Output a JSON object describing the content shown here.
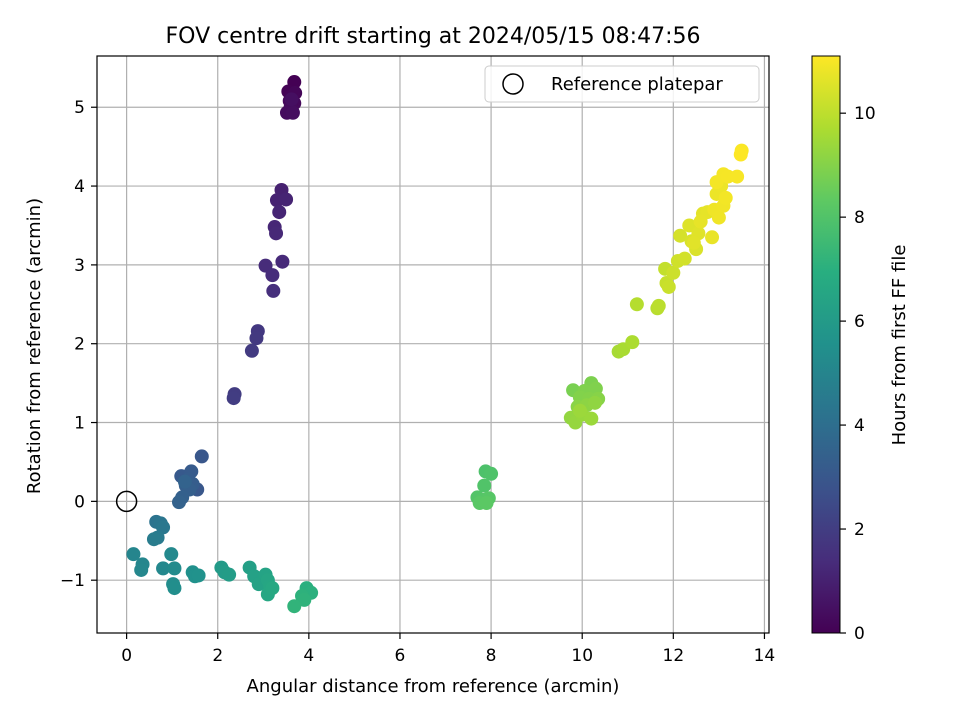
{
  "chart_data": {
    "type": "scatter",
    "title": "FOV centre drift starting at 2024/05/15 08:47:56",
    "xlabel": "Angular distance from reference (arcmin)",
    "ylabel": "Rotation from reference (arcmin)",
    "xlim": [
      -0.65,
      14.1
    ],
    "ylim": [
      -1.67,
      5.65
    ],
    "xticks": [
      0,
      2,
      4,
      6,
      8,
      10,
      12,
      14
    ],
    "yticks": [
      -1,
      0,
      1,
      2,
      3,
      4,
      5
    ],
    "ytick_labels": [
      "−1",
      "0",
      "1",
      "2",
      "3",
      "4",
      "5"
    ],
    "grid": true,
    "legend": {
      "placement": "top-right",
      "entries": [
        "Reference platepar"
      ]
    },
    "reference_point": {
      "x": 0,
      "y": 0,
      "label": "Reference platepar"
    },
    "colorbar": {
      "label": "Hours from first FF file",
      "colormap": "viridis",
      "range": [
        0,
        11.1
      ],
      "ticks": [
        0,
        2,
        4,
        6,
        8,
        10
      ]
    },
    "points": [
      {
        "x": 3.68,
        "y": 5.32,
        "h": 0.0
      },
      {
        "x": 3.55,
        "y": 5.2,
        "h": 0.05
      },
      {
        "x": 3.62,
        "y": 5.15,
        "h": 0.1
      },
      {
        "x": 3.7,
        "y": 5.18,
        "h": 0.15
      },
      {
        "x": 3.58,
        "y": 5.08,
        "h": 0.2
      },
      {
        "x": 3.68,
        "y": 5.05,
        "h": 0.25
      },
      {
        "x": 3.6,
        "y": 5.0,
        "h": 0.3
      },
      {
        "x": 3.52,
        "y": 4.93,
        "h": 0.35
      },
      {
        "x": 3.65,
        "y": 4.93,
        "h": 0.4
      },
      {
        "x": 3.62,
        "y": 5.1,
        "h": 0.45
      },
      {
        "x": 3.4,
        "y": 3.95,
        "h": 1.0
      },
      {
        "x": 3.3,
        "y": 3.82,
        "h": 1.05
      },
      {
        "x": 3.5,
        "y": 3.83,
        "h": 1.1
      },
      {
        "x": 3.35,
        "y": 3.67,
        "h": 1.15
      },
      {
        "x": 3.25,
        "y": 3.48,
        "h": 1.2
      },
      {
        "x": 3.28,
        "y": 3.4,
        "h": 1.25
      },
      {
        "x": 3.42,
        "y": 3.04,
        "h": 1.3
      },
      {
        "x": 3.05,
        "y": 2.99,
        "h": 1.35
      },
      {
        "x": 3.2,
        "y": 2.87,
        "h": 1.4
      },
      {
        "x": 3.22,
        "y": 2.67,
        "h": 1.45
      },
      {
        "x": 2.88,
        "y": 2.16,
        "h": 1.8
      },
      {
        "x": 2.85,
        "y": 2.07,
        "h": 1.85
      },
      {
        "x": 2.75,
        "y": 1.91,
        "h": 1.9
      },
      {
        "x": 2.37,
        "y": 1.36,
        "h": 1.95
      },
      {
        "x": 2.35,
        "y": 1.31,
        "h": 2.0
      },
      {
        "x": 1.65,
        "y": 0.57,
        "h": 3.0
      },
      {
        "x": 1.55,
        "y": 0.15,
        "h": 3.0
      },
      {
        "x": 1.2,
        "y": 0.32,
        "h": 3.1
      },
      {
        "x": 1.42,
        "y": 0.38,
        "h": 3.15
      },
      {
        "x": 1.35,
        "y": 0.28,
        "h": 3.2
      },
      {
        "x": 1.45,
        "y": 0.22,
        "h": 3.25
      },
      {
        "x": 1.3,
        "y": 0.2,
        "h": 3.3
      },
      {
        "x": 1.38,
        "y": 0.15,
        "h": 3.35
      },
      {
        "x": 1.22,
        "y": 0.05,
        "h": 3.4
      },
      {
        "x": 1.15,
        "y": -0.01,
        "h": 3.45
      },
      {
        "x": 1.28,
        "y": 0.25,
        "h": 3.5
      },
      {
        "x": 0.65,
        "y": -0.26,
        "h": 4.2
      },
      {
        "x": 0.75,
        "y": -0.28,
        "h": 4.3
      },
      {
        "x": 0.8,
        "y": -0.33,
        "h": 4.4
      },
      {
        "x": 0.68,
        "y": -0.46,
        "h": 4.5
      },
      {
        "x": 0.6,
        "y": -0.48,
        "h": 4.6
      },
      {
        "x": 0.15,
        "y": -0.67,
        "h": 5.0
      },
      {
        "x": 0.35,
        "y": -0.8,
        "h": 5.05
      },
      {
        "x": 0.32,
        "y": -0.87,
        "h": 5.1
      },
      {
        "x": 0.8,
        "y": -0.85,
        "h": 5.15
      },
      {
        "x": 0.98,
        "y": -0.67,
        "h": 5.2
      },
      {
        "x": 1.05,
        "y": -0.85,
        "h": 5.3
      },
      {
        "x": 1.02,
        "y": -1.05,
        "h": 5.35
      },
      {
        "x": 1.05,
        "y": -1.1,
        "h": 5.4
      },
      {
        "x": 1.45,
        "y": -0.9,
        "h": 5.5
      },
      {
        "x": 1.5,
        "y": -0.95,
        "h": 5.55
      },
      {
        "x": 1.58,
        "y": -0.94,
        "h": 5.6
      },
      {
        "x": 2.08,
        "y": -0.84,
        "h": 6.0
      },
      {
        "x": 2.15,
        "y": -0.9,
        "h": 6.05
      },
      {
        "x": 2.25,
        "y": -0.93,
        "h": 6.1
      },
      {
        "x": 2.7,
        "y": -0.84,
        "h": 6.2
      },
      {
        "x": 2.8,
        "y": -0.95,
        "h": 6.3
      },
      {
        "x": 2.9,
        "y": -1.05,
        "h": 6.35
      },
      {
        "x": 3.05,
        "y": -0.93,
        "h": 6.4
      },
      {
        "x": 3.1,
        "y": -1.0,
        "h": 6.5
      },
      {
        "x": 3.15,
        "y": -1.08,
        "h": 6.55
      },
      {
        "x": 3.1,
        "y": -1.18,
        "h": 6.6
      },
      {
        "x": 3.2,
        "y": -1.1,
        "h": 6.65
      },
      {
        "x": 3.95,
        "y": -1.1,
        "h": 7.0
      },
      {
        "x": 4.05,
        "y": -1.16,
        "h": 7.05
      },
      {
        "x": 3.85,
        "y": -1.2,
        "h": 7.1
      },
      {
        "x": 3.9,
        "y": -1.25,
        "h": 7.15
      },
      {
        "x": 3.68,
        "y": -1.33,
        "h": 7.2
      },
      {
        "x": 7.88,
        "y": 0.38,
        "h": 7.9
      },
      {
        "x": 8.0,
        "y": 0.35,
        "h": 7.95
      },
      {
        "x": 7.85,
        "y": 0.2,
        "h": 8.0
      },
      {
        "x": 7.7,
        "y": 0.05,
        "h": 8.05
      },
      {
        "x": 7.8,
        "y": 0.02,
        "h": 8.1
      },
      {
        "x": 7.95,
        "y": 0.04,
        "h": 8.15
      },
      {
        "x": 7.75,
        "y": -0.02,
        "h": 8.2
      },
      {
        "x": 7.9,
        "y": -0.02,
        "h": 8.25
      },
      {
        "x": 9.8,
        "y": 1.41,
        "h": 8.8
      },
      {
        "x": 10.2,
        "y": 1.5,
        "h": 8.85
      },
      {
        "x": 10.05,
        "y": 1.4,
        "h": 8.9
      },
      {
        "x": 10.3,
        "y": 1.43,
        "h": 8.92
      },
      {
        "x": 9.95,
        "y": 1.32,
        "h": 8.95
      },
      {
        "x": 10.15,
        "y": 1.3,
        "h": 9.0
      },
      {
        "x": 10.35,
        "y": 1.3,
        "h": 9.05
      },
      {
        "x": 9.9,
        "y": 1.2,
        "h": 9.1
      },
      {
        "x": 10.1,
        "y": 1.22,
        "h": 9.15
      },
      {
        "x": 10.28,
        "y": 1.25,
        "h": 9.2
      },
      {
        "x": 9.75,
        "y": 1.06,
        "h": 9.25
      },
      {
        "x": 9.85,
        "y": 1.0,
        "h": 9.3
      },
      {
        "x": 10.0,
        "y": 1.1,
        "h": 9.35
      },
      {
        "x": 10.2,
        "y": 1.05,
        "h": 9.4
      },
      {
        "x": 9.95,
        "y": 1.15,
        "h": 9.42
      },
      {
        "x": 10.8,
        "y": 1.9,
        "h": 9.6
      },
      {
        "x": 10.9,
        "y": 1.93,
        "h": 9.65
      },
      {
        "x": 11.1,
        "y": 2.02,
        "h": 9.7
      },
      {
        "x": 11.2,
        "y": 2.5,
        "h": 9.85
      },
      {
        "x": 11.65,
        "y": 2.45,
        "h": 9.9
      },
      {
        "x": 11.68,
        "y": 2.48,
        "h": 9.95
      },
      {
        "x": 11.82,
        "y": 2.95,
        "h": 10.1
      },
      {
        "x": 11.85,
        "y": 2.77,
        "h": 10.15
      },
      {
        "x": 11.9,
        "y": 2.72,
        "h": 10.2
      },
      {
        "x": 12.0,
        "y": 2.9,
        "h": 10.25
      },
      {
        "x": 12.1,
        "y": 3.05,
        "h": 10.3
      },
      {
        "x": 12.25,
        "y": 3.08,
        "h": 10.35
      },
      {
        "x": 12.15,
        "y": 3.37,
        "h": 10.4
      },
      {
        "x": 12.4,
        "y": 3.3,
        "h": 10.45
      },
      {
        "x": 12.5,
        "y": 3.2,
        "h": 10.5
      },
      {
        "x": 12.35,
        "y": 3.5,
        "h": 10.55
      },
      {
        "x": 12.55,
        "y": 3.4,
        "h": 10.6
      },
      {
        "x": 12.45,
        "y": 3.28,
        "h": 10.62
      },
      {
        "x": 12.65,
        "y": 3.65,
        "h": 10.65
      },
      {
        "x": 12.75,
        "y": 3.67,
        "h": 10.7
      },
      {
        "x": 12.6,
        "y": 3.55,
        "h": 10.72
      },
      {
        "x": 12.85,
        "y": 3.35,
        "h": 10.75
      },
      {
        "x": 12.95,
        "y": 3.9,
        "h": 10.8
      },
      {
        "x": 13.05,
        "y": 4.0,
        "h": 10.82
      },
      {
        "x": 12.9,
        "y": 3.7,
        "h": 10.85
      },
      {
        "x": 13.0,
        "y": 3.6,
        "h": 10.88
      },
      {
        "x": 13.1,
        "y": 3.75,
        "h": 10.9
      },
      {
        "x": 13.15,
        "y": 3.85,
        "h": 10.92
      },
      {
        "x": 12.95,
        "y": 4.05,
        "h": 10.94
      },
      {
        "x": 13.1,
        "y": 4.15,
        "h": 10.96
      },
      {
        "x": 13.2,
        "y": 4.12,
        "h": 10.98
      },
      {
        "x": 13.4,
        "y": 4.12,
        "h": 11.0
      },
      {
        "x": 13.5,
        "y": 4.45,
        "h": 11.05
      },
      {
        "x": 13.48,
        "y": 4.4,
        "h": 11.1
      }
    ]
  }
}
